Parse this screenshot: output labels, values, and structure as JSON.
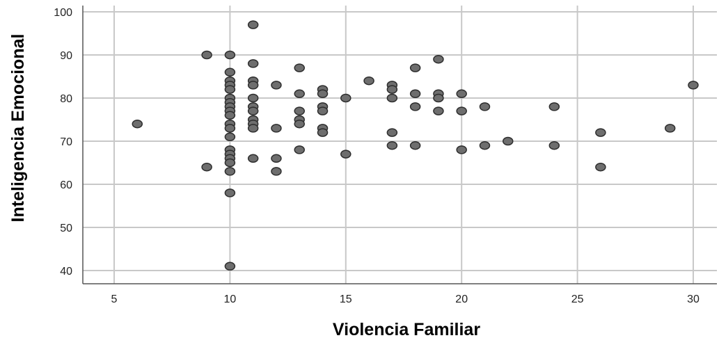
{
  "chart_data": {
    "type": "scatter",
    "xlabel": "Violencia Familiar",
    "ylabel": "Inteligencia Emocional",
    "xlim": [
      4,
      31
    ],
    "ylim": [
      38,
      101
    ],
    "xticks": [
      5,
      10,
      15,
      20,
      25,
      30
    ],
    "yticks": [
      40,
      50,
      60,
      70,
      80,
      90,
      100
    ],
    "grid": true,
    "points": [
      {
        "x": 6,
        "y": 74
      },
      {
        "x": 9,
        "y": 90
      },
      {
        "x": 9,
        "y": 64
      },
      {
        "x": 10,
        "y": 90
      },
      {
        "x": 10,
        "y": 86
      },
      {
        "x": 10,
        "y": 84
      },
      {
        "x": 10,
        "y": 83
      },
      {
        "x": 10,
        "y": 82
      },
      {
        "x": 10,
        "y": 80
      },
      {
        "x": 10,
        "y": 79
      },
      {
        "x": 10,
        "y": 78
      },
      {
        "x": 10,
        "y": 77
      },
      {
        "x": 10,
        "y": 76
      },
      {
        "x": 10,
        "y": 74
      },
      {
        "x": 10,
        "y": 73
      },
      {
        "x": 10,
        "y": 71
      },
      {
        "x": 10,
        "y": 68
      },
      {
        "x": 10,
        "y": 67
      },
      {
        "x": 10,
        "y": 66
      },
      {
        "x": 10,
        "y": 65
      },
      {
        "x": 10,
        "y": 63
      },
      {
        "x": 10,
        "y": 58
      },
      {
        "x": 10,
        "y": 41
      },
      {
        "x": 11,
        "y": 97
      },
      {
        "x": 11,
        "y": 88
      },
      {
        "x": 11,
        "y": 84
      },
      {
        "x": 11,
        "y": 83
      },
      {
        "x": 11,
        "y": 80
      },
      {
        "x": 11,
        "y": 78
      },
      {
        "x": 11,
        "y": 77
      },
      {
        "x": 11,
        "y": 75
      },
      {
        "x": 11,
        "y": 74
      },
      {
        "x": 11,
        "y": 73
      },
      {
        "x": 11,
        "y": 66
      },
      {
        "x": 12,
        "y": 83
      },
      {
        "x": 12,
        "y": 73
      },
      {
        "x": 12,
        "y": 66
      },
      {
        "x": 12,
        "y": 63
      },
      {
        "x": 13,
        "y": 87
      },
      {
        "x": 13,
        "y": 81
      },
      {
        "x": 13,
        "y": 77
      },
      {
        "x": 13,
        "y": 75
      },
      {
        "x": 13,
        "y": 74
      },
      {
        "x": 13,
        "y": 68
      },
      {
        "x": 14,
        "y": 82
      },
      {
        "x": 14,
        "y": 81
      },
      {
        "x": 14,
        "y": 78
      },
      {
        "x": 14,
        "y": 77
      },
      {
        "x": 14,
        "y": 73
      },
      {
        "x": 14,
        "y": 72
      },
      {
        "x": 15,
        "y": 80
      },
      {
        "x": 15,
        "y": 67
      },
      {
        "x": 16,
        "y": 84
      },
      {
        "x": 17,
        "y": 83
      },
      {
        "x": 17,
        "y": 82
      },
      {
        "x": 17,
        "y": 80
      },
      {
        "x": 17,
        "y": 72
      },
      {
        "x": 17,
        "y": 69
      },
      {
        "x": 18,
        "y": 87
      },
      {
        "x": 18,
        "y": 81
      },
      {
        "x": 18,
        "y": 78
      },
      {
        "x": 18,
        "y": 69
      },
      {
        "x": 19,
        "y": 89
      },
      {
        "x": 19,
        "y": 81
      },
      {
        "x": 19,
        "y": 80
      },
      {
        "x": 19,
        "y": 77
      },
      {
        "x": 20,
        "y": 81
      },
      {
        "x": 20,
        "y": 77
      },
      {
        "x": 20,
        "y": 68
      },
      {
        "x": 21,
        "y": 78
      },
      {
        "x": 21,
        "y": 69
      },
      {
        "x": 22,
        "y": 70
      },
      {
        "x": 24,
        "y": 78
      },
      {
        "x": 24,
        "y": 69
      },
      {
        "x": 26,
        "y": 72
      },
      {
        "x": 26,
        "y": 64
      },
      {
        "x": 29,
        "y": 73
      },
      {
        "x": 30,
        "y": 83
      }
    ]
  }
}
